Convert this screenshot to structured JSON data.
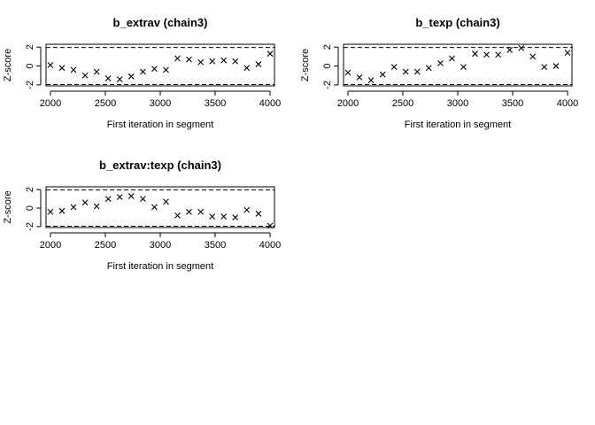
{
  "chart_data": [
    {
      "type": "scatter",
      "marker": "x",
      "title": "b_extrav (chain3)",
      "xlabel": "First iteration in segment",
      "ylabel": "Z-score",
      "xlim": [
        1960,
        4040
      ],
      "ylim": [
        -2.1,
        2.3
      ],
      "xticks": [
        2000,
        2500,
        3000,
        3500,
        4000
      ],
      "yticks": [
        -2,
        0,
        2
      ],
      "limits": [
        -1.96,
        1.96
      ],
      "x": [
        2000,
        2105,
        2210,
        2316,
        2421,
        2526,
        2631,
        2736,
        2842,
        2947,
        3052,
        3157,
        3262,
        3368,
        3473,
        3578,
        3683,
        3788,
        3894,
        4000
      ],
      "y": [
        0.1,
        -0.2,
        -0.4,
        -1.0,
        -0.6,
        -1.3,
        -1.4,
        -1.1,
        -0.6,
        -0.3,
        -0.4,
        0.8,
        0.7,
        0.4,
        0.5,
        0.6,
        0.5,
        -0.2,
        0.2,
        1.3
      ]
    },
    {
      "type": "scatter",
      "marker": "x",
      "title": "b_texp (chain3)",
      "xlabel": "First iteration in segment",
      "ylabel": "Z-score",
      "xlim": [
        1960,
        4040
      ],
      "ylim": [
        -2.1,
        2.3
      ],
      "xticks": [
        2000,
        2500,
        3000,
        3500,
        4000
      ],
      "yticks": [
        -2,
        0,
        2
      ],
      "limits": [
        -1.96,
        1.96
      ],
      "x": [
        2000,
        2105,
        2210,
        2316,
        2421,
        2526,
        2631,
        2736,
        2842,
        2947,
        3052,
        3157,
        3262,
        3368,
        3473,
        3578,
        3683,
        3788,
        3894,
        4000
      ],
      "y": [
        -0.7,
        -1.2,
        -1.5,
        -0.9,
        -0.1,
        -0.6,
        -0.6,
        -0.2,
        0.3,
        0.8,
        -0.1,
        1.3,
        1.2,
        1.2,
        1.7,
        1.9,
        1.0,
        -0.1,
        0.0,
        1.4
      ]
    },
    {
      "type": "scatter",
      "marker": "x",
      "title": "b_extrav:texp (chain3)",
      "xlabel": "First iteration in segment",
      "ylabel": "Z-score",
      "xlim": [
        1960,
        4040
      ],
      "ylim": [
        -2.1,
        2.3
      ],
      "xticks": [
        2000,
        2500,
        3000,
        3500,
        4000
      ],
      "yticks": [
        -2,
        0,
        2
      ],
      "limits": [
        -1.96,
        1.96
      ],
      "x": [
        2000,
        2105,
        2210,
        2316,
        2421,
        2526,
        2631,
        2736,
        2842,
        2947,
        3052,
        3157,
        3262,
        3368,
        3473,
        3578,
        3683,
        3788,
        3894,
        4000
      ],
      "y": [
        -0.4,
        -0.3,
        0.1,
        0.6,
        0.2,
        1.0,
        1.2,
        1.3,
        1.0,
        0.1,
        0.7,
        -0.8,
        -0.4,
        -0.4,
        -0.9,
        -0.9,
        -1.0,
        -0.2,
        -0.6,
        -1.9
      ]
    }
  ]
}
